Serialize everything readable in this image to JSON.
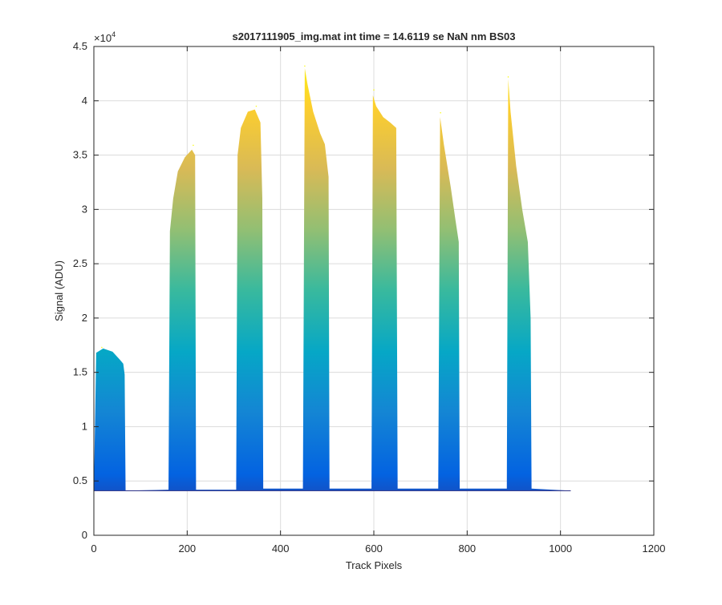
{
  "chart_data": {
    "type": "area",
    "title": "s2017111905_img.mat int time = 14.6119 se  NaN nm BS03",
    "xlabel": "Track Pixels",
    "ylabel": "Signal (ADU)",
    "xlim": [
      0,
      1200
    ],
    "ylim": [
      0,
      45000
    ],
    "xticks": [
      0,
      200,
      400,
      600,
      800,
      1000,
      1200
    ],
    "yticks": [
      0,
      5000,
      10000,
      15000,
      20000,
      25000,
      30000,
      35000,
      40000,
      45000
    ],
    "xtick_labels": [
      "0",
      "200",
      "400",
      "600",
      "800",
      "1000",
      "1200"
    ],
    "ytick_labels": [
      "0",
      "0.5",
      "1",
      "1.5",
      "2",
      "2.5",
      "3",
      "3.5",
      "4",
      "4.5"
    ],
    "y_exponent_label": "×10",
    "y_exponent_power": "4",
    "grid": true,
    "baseline": 4100,
    "colormap": [
      "#352a87",
      "#0363e1",
      "#1485d4",
      "#06a7c6",
      "#38b99e",
      "#92bf73",
      "#d9ba56",
      "#fcce2e",
      "#f9fb0e"
    ],
    "x": [
      0,
      5,
      20,
      40,
      55,
      63,
      66,
      68,
      160,
      163,
      170,
      180,
      195,
      210,
      217,
      219,
      305,
      308,
      315,
      330,
      345,
      357,
      361,
      363,
      448,
      452,
      458,
      470,
      485,
      495,
      503,
      505,
      595,
      598,
      605,
      620,
      635,
      648,
      651,
      653,
      738,
      742,
      750,
      765,
      775,
      782,
      784,
      885,
      888,
      893,
      905,
      918,
      930,
      936,
      938,
      1022
    ],
    "upper": [
      4100,
      16800,
      17200,
      16900,
      16200,
      15800,
      14800,
      4100,
      4200,
      28000,
      31000,
      33500,
      34800,
      35500,
      35000,
      4200,
      4200,
      35000,
      37500,
      39000,
      39200,
      38000,
      31000,
      4300,
      4300,
      43000,
      41500,
      39000,
      37000,
      36000,
      33000,
      4300,
      4300,
      40500,
      39500,
      38500,
      38000,
      37500,
      4300,
      4300,
      4300,
      38500,
      36000,
      32000,
      29000,
      27000,
      4300,
      4300,
      42000,
      39000,
      34000,
      30000,
      27000,
      20000,
      4300,
      4100
    ],
    "peaks": [
      {
        "x": 17,
        "y": 17300
      },
      {
        "x": 213,
        "y": 35900
      },
      {
        "x": 348,
        "y": 39500
      },
      {
        "x": 452,
        "y": 43200
      },
      {
        "x": 600,
        "y": 41000
      },
      {
        "x": 743,
        "y": 38900
      },
      {
        "x": 888,
        "y": 42200
      }
    ]
  }
}
